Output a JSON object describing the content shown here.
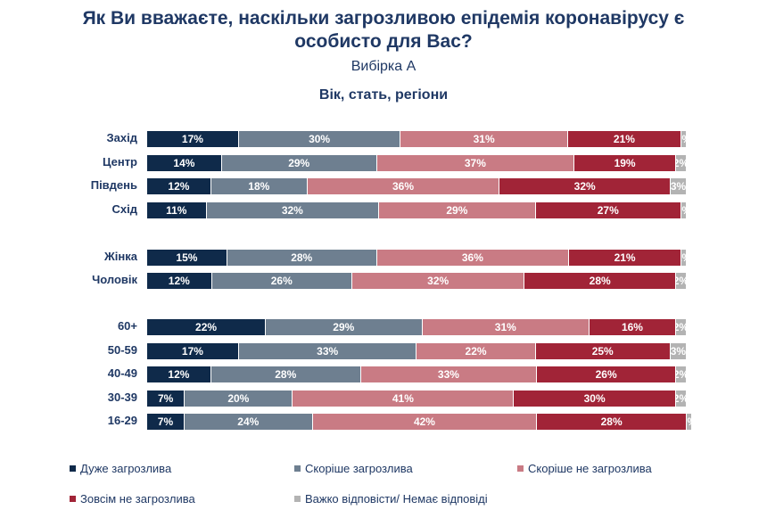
{
  "title_lines": [
    "Як Ви вважаєте, наскільки загрозливою епідемія коронавірусу є",
    "особисто для Вас?"
  ],
  "subtitle": "Вибірка А",
  "section_title": "Вік, стать, регіони",
  "chart_data": {
    "type": "bar",
    "orientation": "horizontal",
    "stacked": true,
    "percent_stacked": true,
    "title": "Як Ви вважаєте, наскільки загрозливою епідемія коронавірусу є особисто для Вас?",
    "subtitle": "Вибірка А",
    "categories": [
      "Захід",
      "Центр",
      "Південь",
      "Схід",
      "Жінка",
      "Чоловік",
      "60+",
      "50-59",
      "40-49",
      "30-39",
      "16-29"
    ],
    "series": [
      {
        "name": "Дуже загрозлива",
        "color": "#0f2a4a",
        "text_color": "#ffffff",
        "values": [
          17,
          14,
          12,
          11,
          15,
          12,
          22,
          17,
          12,
          7,
          7
        ]
      },
      {
        "name": "Скоріше загрозлива",
        "color": "#6e7f90",
        "text_color": "#ffffff",
        "values": [
          30,
          29,
          18,
          32,
          28,
          26,
          29,
          33,
          28,
          20,
          24
        ]
      },
      {
        "name": "Скоріше не загрозлива",
        "color": "#c97b84",
        "text_color": "#ffffff",
        "values": [
          31,
          37,
          36,
          29,
          36,
          32,
          31,
          22,
          33,
          41,
          42
        ]
      },
      {
        "name": "Зовсім не загрозлива",
        "color": "#a12437",
        "text_color": "#ffffff",
        "values": [
          21,
          19,
          32,
          27,
          21,
          28,
          16,
          25,
          26,
          30,
          28
        ]
      },
      {
        "name": "Важко відповісти/ Немає відповіді",
        "color": "#b3b3b3",
        "text_color": "#ffffff",
        "values": [
          1,
          2,
          3,
          1,
          1,
          2,
          2,
          3,
          2,
          2,
          0
        ]
      }
    ],
    "xlim": [
      0,
      100
    ],
    "value_suffix": "%",
    "legend_position": "bottom"
  }
}
